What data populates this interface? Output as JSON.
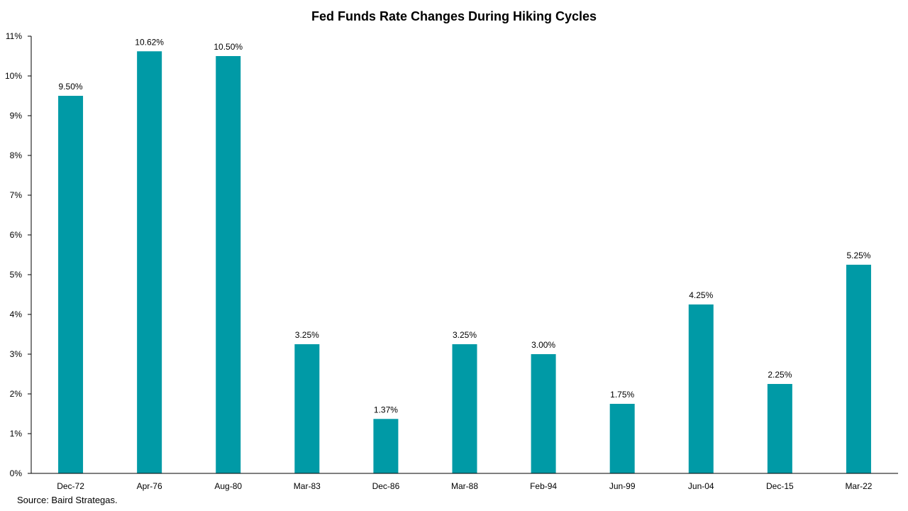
{
  "chart_data": {
    "type": "bar",
    "title": "Fed Funds Rate Changes During Hiking Cycles",
    "categories": [
      "Dec-72",
      "Apr-76",
      "Aug-80",
      "Mar-83",
      "Dec-86",
      "Mar-88",
      "Feb-94",
      "Jun-99",
      "Jun-04",
      "Dec-15",
      "Mar-22"
    ],
    "values": [
      9.5,
      10.62,
      10.5,
      3.25,
      1.37,
      3.25,
      3.0,
      1.75,
      4.25,
      2.25,
      5.25
    ],
    "data_labels": [
      "9.50%",
      "10.62%",
      "10.50%",
      "3.25%",
      "1.37%",
      "3.25%",
      "3.00%",
      "1.75%",
      "4.25%",
      "2.25%",
      "5.25%"
    ],
    "y_ticks": [
      0,
      1,
      2,
      3,
      4,
      5,
      6,
      7,
      8,
      9,
      10,
      11
    ],
    "y_tick_labels": [
      "0%",
      "1%",
      "2%",
      "3%",
      "4%",
      "5%",
      "6%",
      "7%",
      "8%",
      "9%",
      "10%",
      "11%"
    ],
    "ylim": [
      0,
      11
    ],
    "xlabel": "",
    "ylabel": "",
    "grid": false,
    "bar_color": "#009AA6",
    "source": "Source: Baird Strategas."
  }
}
